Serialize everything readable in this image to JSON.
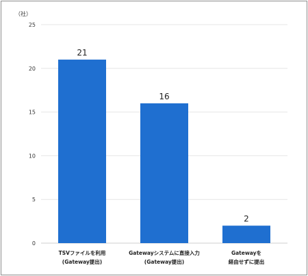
{
  "chart_data": {
    "type": "bar",
    "unit_label": "（社）",
    "categories": [
      [
        "TSVファイルを利用",
        "(Gateway提出)"
      ],
      [
        "Gatewayシステムに直接入力",
        "(Gateway提出)"
      ],
      [
        "Gatewayを",
        "経由せずに提出"
      ]
    ],
    "values": [
      21,
      16,
      2
    ],
    "ylim": [
      0,
      25
    ],
    "yticks": [
      0,
      5,
      10,
      15,
      20,
      25
    ],
    "grid": true,
    "bar_color": "#1f6fd0",
    "gridline_color": "#e6e6e6"
  }
}
